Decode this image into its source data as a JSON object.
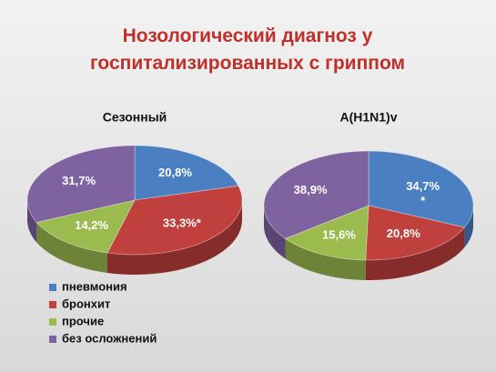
{
  "title": "Нозологический диагноз у госпитализированных с гриппом",
  "legend": {
    "categories": [
      "пневмония",
      "бронхит",
      "прочие",
      "без осложнений"
    ],
    "colors": [
      "#4a7fc1",
      "#c0403d",
      "#9bbb4f",
      "#7f63a1"
    ]
  },
  "chart_data": [
    {
      "type": "pie",
      "title": "Сезонный",
      "values": [
        20.8,
        33.3,
        14.2,
        31.7
      ],
      "value_labels": [
        "20,8%",
        "33,3%*",
        "14,2%",
        "31,7%"
      ]
    },
    {
      "type": "pie",
      "title": "A(H1N1)v",
      "values": [
        34.7,
        20.8,
        15.6,
        38.9
      ],
      "value_labels": [
        "34,7%",
        "20,8%",
        "15,6%",
        "38,9%"
      ],
      "note": "*"
    }
  ]
}
